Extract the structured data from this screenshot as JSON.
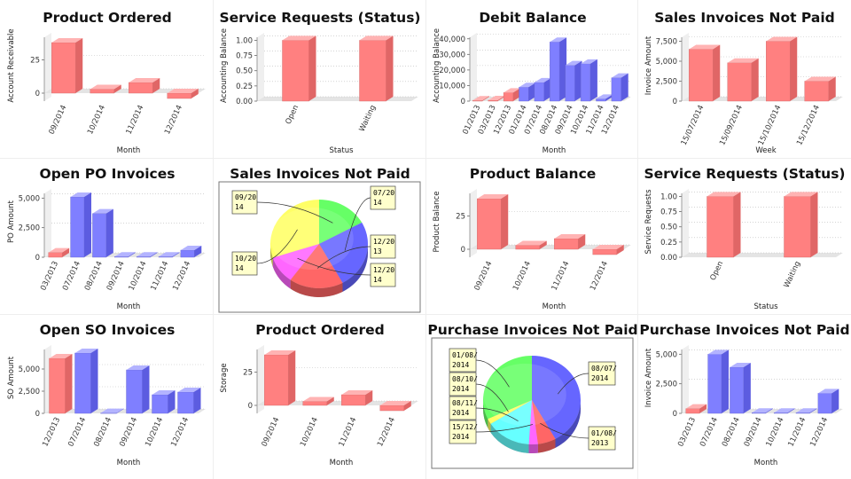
{
  "colors": {
    "red": "#ff8080",
    "redTop": "#ffb3b3",
    "redSide": "#e06666",
    "blue": "#7f7fff",
    "blueTop": "#b3b3ff",
    "blueSide": "#5c5ce0",
    "floor": "#e4e4e4",
    "grid": "#bbbbbb",
    "panelBorder": "#eeeeee"
  },
  "chart_data": [
    {
      "title": "Product Ordered",
      "type": "bar",
      "ylabel": "Account Receivable",
      "xlabel": "Month",
      "categories": [
        "09/2014",
        "10/2014",
        "11/2014",
        "12/2014"
      ],
      "values": [
        38,
        3,
        8,
        -4
      ],
      "colors": [
        "red",
        "red",
        "red",
        "red"
      ],
      "ylim": [
        -6,
        42
      ],
      "yticks": [
        0,
        25
      ]
    },
    {
      "title": "Service Requests (Status)",
      "type": "bar",
      "ylabel": "Accounting Balance",
      "xlabel": "Status",
      "categories": [
        "Open",
        "Waiting"
      ],
      "values": [
        1,
        1
      ],
      "colors": [
        "red",
        "red"
      ],
      "ylim": [
        0,
        1.05
      ],
      "yticks": [
        0,
        0.25,
        0.5,
        0.75,
        1
      ],
      "ytick_labels": [
        "0.00",
        "0.25",
        "0.50",
        "0.75",
        "1.00"
      ]
    },
    {
      "title": "Debit Balance",
      "type": "bar",
      "ylabel": "Accounting Balance",
      "xlabel": "Month",
      "categories": [
        "01/2013",
        "03/2013",
        "12/2013",
        "01/2014",
        "07/2014",
        "08/2014",
        "09/2014",
        "10/2014",
        "11/2014",
        "12/2014"
      ],
      "values": [
        400,
        600,
        5500,
        9000,
        12000,
        38000,
        23000,
        24000,
        1500,
        15000
      ],
      "colors": [
        "red",
        "red",
        "red",
        "blue",
        "blue",
        "blue",
        "blue",
        "blue",
        "blue",
        "blue"
      ],
      "ylim": [
        0,
        41000
      ],
      "yticks": [
        0,
        10000,
        20000,
        30000,
        40000
      ],
      "ytick_labels": [
        "0",
        "10,000",
        "20,000",
        "30,000",
        "40,000"
      ]
    },
    {
      "title": "Sales Invoices Not Paid",
      "type": "bar",
      "ylabel": "Invoice Amount",
      "xlabel": "Week",
      "categories": [
        "15/07/2014",
        "15/09/2014",
        "15/10/2014",
        "15/12/2014"
      ],
      "values": [
        6500,
        4800,
        7500,
        2500
      ],
      "colors": [
        "red",
        "red",
        "red",
        "red"
      ],
      "ylim": [
        0,
        8000
      ],
      "yticks": [
        0,
        2500,
        5000,
        7500
      ],
      "ytick_labels": [
        "0",
        "2,500",
        "5,000",
        "7,500"
      ]
    },
    {
      "title": "Open PO Invoices",
      "type": "bar",
      "ylabel": "PO Amount",
      "xlabel": "Month",
      "categories": [
        "03/2013",
        "07/2014",
        "08/2014",
        "09/2014",
        "10/2014",
        "11/2014",
        "12/2014"
      ],
      "values": [
        400,
        5100,
        3700,
        60,
        60,
        60,
        600
      ],
      "colors": [
        "red",
        "blue",
        "blue",
        "blue",
        "blue",
        "blue",
        "blue"
      ],
      "ylim": [
        0,
        5400
      ],
      "yticks": [
        0,
        2500,
        5000
      ],
      "ytick_labels": [
        "0",
        "2,500",
        "5,000"
      ]
    },
    {
      "title": "Sales Invoices Not Paid",
      "type": "pie",
      "labels": [
        "09/2014",
        "07/2014",
        "12/2013",
        "12/2014",
        "10/2014"
      ],
      "values": [
        17,
        25,
        18,
        10,
        30
      ],
      "colors": [
        "#66ff66",
        "#6666ff",
        "#ff6666",
        "#ff66ff",
        "#ffff66"
      ]
    },
    {
      "title": "Product Balance",
      "type": "bar",
      "ylabel": "Product Balance",
      "xlabel": "Month",
      "categories": [
        "09/2014",
        "10/2014",
        "11/2014",
        "12/2014"
      ],
      "values": [
        38,
        3,
        8,
        -4
      ],
      "colors": [
        "red",
        "red",
        "red",
        "red"
      ],
      "ylim": [
        -6,
        42
      ],
      "yticks": [
        0,
        25
      ]
    },
    {
      "title": "Service Requests (Status)",
      "type": "bar",
      "ylabel": "Service Requests",
      "xlabel": "Status",
      "categories": [
        "Open",
        "Waiting"
      ],
      "values": [
        1,
        1
      ],
      "colors": [
        "red",
        "red"
      ],
      "ylim": [
        0,
        1.05
      ],
      "yticks": [
        0,
        0.25,
        0.5,
        0.75,
        1
      ],
      "ytick_labels": [
        "0.00",
        "0.25",
        "0.50",
        "0.75",
        "1.00"
      ]
    },
    {
      "title": "Open SO Invoices",
      "type": "bar",
      "ylabel": "SO Amount",
      "xlabel": "Month",
      "categories": [
        "12/2013",
        "07/2014",
        "08/2014",
        "09/2014",
        "10/2014",
        "12/2014"
      ],
      "values": [
        6200,
        6800,
        40,
        4900,
        2100,
        2400
      ],
      "colors": [
        "red",
        "blue",
        "blue",
        "blue",
        "blue",
        "blue"
      ],
      "ylim": [
        0,
        7200
      ],
      "yticks": [
        0,
        2500,
        5000
      ],
      "ytick_labels": [
        "0",
        "2,500",
        "5,000"
      ]
    },
    {
      "title": "Product Ordered",
      "type": "bar",
      "ylabel": "Storage",
      "xlabel": "Month",
      "categories": [
        "09/2014",
        "10/2014",
        "11/2014",
        "12/2014"
      ],
      "values": [
        38,
        3,
        8,
        -4
      ],
      "colors": [
        "red",
        "red",
        "red",
        "red"
      ],
      "ylim": [
        -6,
        42
      ],
      "yticks": [
        0,
        25
      ]
    },
    {
      "title": "Purchase Invoices Not Paid",
      "type": "pie",
      "labels": [
        "08/07/2014",
        "01/08/2013",
        "15/12/2014",
        "08/11/2014",
        "08/10/2014",
        "01/08/2014"
      ],
      "values": [
        42,
        6,
        3,
        15,
        2,
        32
      ],
      "colors": [
        "#6666ff",
        "#ff6666",
        "#ff66ff",
        "#66ffff",
        "#ffff66",
        "#66ff66"
      ]
    },
    {
      "title": "Purchase Invoices Not Paid",
      "type": "bar",
      "ylabel": "Invoice Amount",
      "xlabel": "Month",
      "categories": [
        "03/2013",
        "07/2014",
        "08/2014",
        "09/2014",
        "10/2014",
        "11/2014",
        "12/2014"
      ],
      "values": [
        400,
        5000,
        3900,
        60,
        60,
        60,
        1700
      ],
      "colors": [
        "red",
        "blue",
        "blue",
        "blue",
        "blue",
        "blue",
        "blue"
      ],
      "ylim": [
        0,
        5400
      ],
      "yticks": [
        0,
        2500,
        5000
      ],
      "ytick_labels": [
        "0",
        "2,500",
        "5,000"
      ]
    }
  ]
}
